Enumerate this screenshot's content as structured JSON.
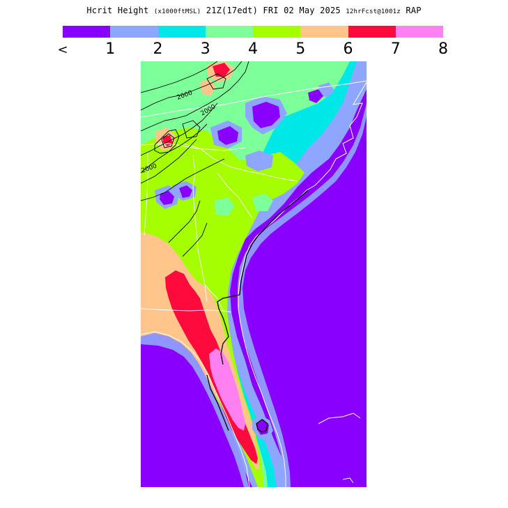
{
  "header": {
    "title_main": "Hcrit Height",
    "title_units": "(x1000ftMSL)",
    "title_time": "21Z(17edt) FRI 02 May 2025",
    "title_fcst": "12hrFcst@1001z",
    "title_model": "RAP"
  },
  "legend": {
    "colors": [
      "#8a00ff",
      "#8fa6ff",
      "#00e7e7",
      "#7dff9a",
      "#a5ff00",
      "#ffc58a",
      "#ff0a3c",
      "#ff80f0"
    ],
    "ticks": [
      "<",
      "1",
      "2",
      "3",
      "4",
      "5",
      "6",
      "7",
      "8"
    ]
  },
  "map": {
    "contour_labels": [
      "2000",
      "2000",
      "2000"
    ],
    "colors": {
      "background": "#8a00ff",
      "boundary": "#ffffff",
      "coast": "#000000",
      "contour": "#000000"
    }
  }
}
